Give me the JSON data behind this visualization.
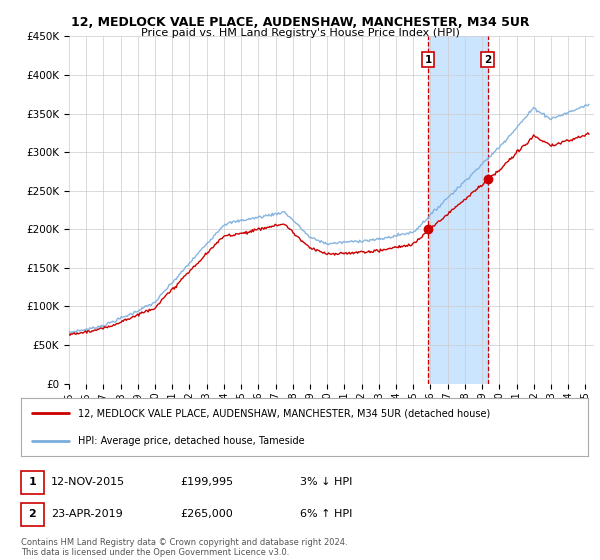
{
  "title": "12, MEDLOCK VALE PLACE, AUDENSHAW, MANCHESTER, M34 5UR",
  "subtitle": "Price paid vs. HM Land Registry's House Price Index (HPI)",
  "ylabel_ticks": [
    "£0",
    "£50K",
    "£100K",
    "£150K",
    "£200K",
    "£250K",
    "£300K",
    "£350K",
    "£400K",
    "£450K"
  ],
  "ylim": [
    0,
    450000
  ],
  "xlim_start": 1995.0,
  "xlim_end": 2025.5,
  "transaction1": {
    "date_num": 2015.87,
    "value": 199995,
    "label": "1",
    "date_str": "12-NOV-2015",
    "price_str": "£199,995",
    "hpi_str": "3% ↓ HPI"
  },
  "transaction2": {
    "date_num": 2019.32,
    "value": 265000,
    "label": "2",
    "date_str": "23-APR-2019",
    "price_str": "£265,000",
    "hpi_str": "6% ↑ HPI"
  },
  "shaded_region": [
    2015.87,
    2019.32
  ],
  "shaded_color": "#cce5ff",
  "dashed_color": "#cc0000",
  "legend_line1_label": "12, MEDLOCK VALE PLACE, AUDENSHAW, MANCHESTER, M34 5UR (detached house)",
  "legend_line2_label": "HPI: Average price, detached house, Tameside",
  "footer": "Contains HM Land Registry data © Crown copyright and database right 2024.\nThis data is licensed under the Open Government Licence v3.0.",
  "hpi_color": "#7aaddd",
  "sold_color": "#cc0000",
  "background_color": "#ffffff",
  "grid_color": "#cccccc",
  "xtick_years": [
    1995,
    1996,
    1997,
    1998,
    1999,
    2000,
    2001,
    2002,
    2003,
    2004,
    2005,
    2006,
    2007,
    2008,
    2009,
    2010,
    2011,
    2012,
    2013,
    2014,
    2015,
    2016,
    2017,
    2018,
    2019,
    2020,
    2021,
    2022,
    2023,
    2024,
    2025
  ]
}
